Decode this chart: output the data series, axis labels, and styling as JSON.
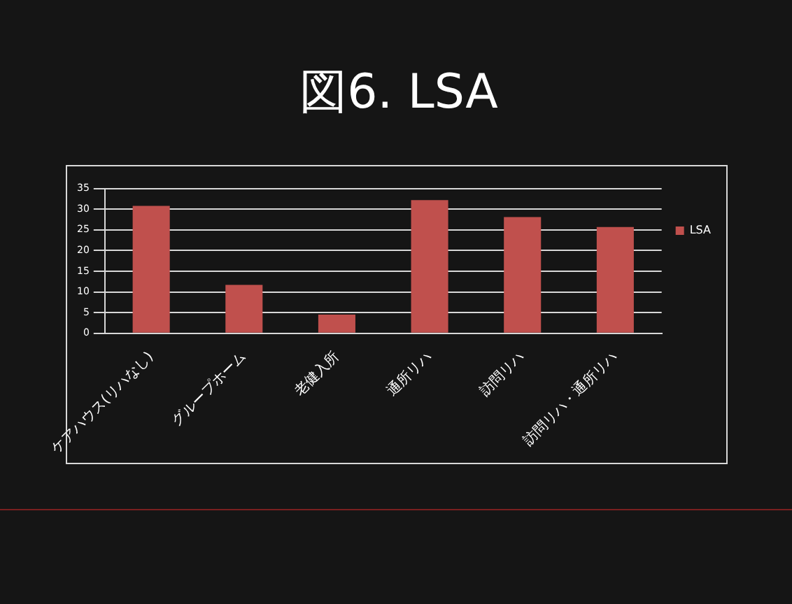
{
  "chart_data": {
    "type": "bar",
    "title": "図6. LSA",
    "categories": [
      "ケアハウス(リハなし)",
      "グループホーム",
      "老健入所",
      "通所リハ",
      "訪問リハ",
      "訪問リハ・通所リハ"
    ],
    "series": [
      {
        "name": "LSA",
        "color": "#c0504d",
        "values": [
          30.8,
          11.7,
          4.5,
          32.2,
          28.1,
          25.7
        ]
      }
    ],
    "ylim": [
      0,
      35
    ],
    "yticks": [
      0,
      5,
      10,
      15,
      20,
      25,
      30,
      35
    ],
    "grid": "y",
    "legend": "right"
  }
}
